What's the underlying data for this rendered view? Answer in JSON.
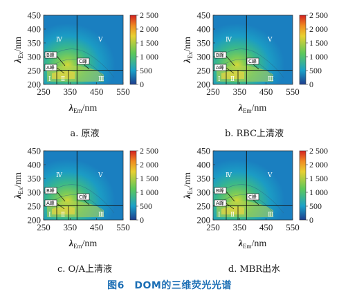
{
  "axis": {
    "x_label_main": "λ",
    "x_label_sub": "Em",
    "x_label_unit": "/nm",
    "y_label_main": "λ",
    "y_label_sub": "Ex",
    "y_label_unit": "/nm",
    "x_ticks": [
      "250",
      "350",
      "450",
      "550"
    ],
    "y_ticks": [
      "450",
      "400",
      "350",
      "300",
      "250",
      "200"
    ],
    "colorbar_ticks": [
      "2 500",
      "2 000",
      "1 500",
      "1 000",
      "500",
      "0"
    ]
  },
  "regions": [
    "Ⅰ",
    "Ⅱ",
    "Ⅲ",
    "Ⅳ",
    "Ⅴ"
  ],
  "peaks": {
    "A": "A峰",
    "B": "B峰",
    "C": "C峰"
  },
  "panels": [
    {
      "caption": "a. 原液"
    },
    {
      "caption": "b. RBC上清液"
    },
    {
      "caption": "c. O/A上清液"
    },
    {
      "caption": "d. MBR出水"
    }
  ],
  "figure_caption": "图6　DOM的三维荧光光谱",
  "chart_data": [
    {
      "type": "heatmap",
      "title": "a. 原液",
      "xlabel": "λEm/nm",
      "ylabel": "λEx/nm",
      "xlim": [
        250,
        550
      ],
      "ylim": [
        200,
        450
      ],
      "colorbar_range": [
        0,
        2500
      ],
      "peaks": [
        "A峰",
        "B峰",
        "C峰"
      ],
      "regions": [
        "Ⅰ",
        "Ⅱ",
        "Ⅲ",
        "Ⅳ",
        "Ⅴ"
      ]
    },
    {
      "type": "heatmap",
      "title": "b. RBC上清液",
      "xlabel": "λEm/nm",
      "ylabel": "λEx/nm",
      "xlim": [
        250,
        550
      ],
      "ylim": [
        200,
        450
      ],
      "colorbar_range": [
        0,
        2500
      ],
      "peaks": [
        "A峰",
        "B峰",
        "C峰"
      ],
      "regions": [
        "Ⅰ",
        "Ⅱ",
        "Ⅲ",
        "Ⅳ",
        "Ⅴ"
      ]
    },
    {
      "type": "heatmap",
      "title": "c. O/A上清液",
      "xlabel": "λEm/nm",
      "ylabel": "λEx/nm",
      "xlim": [
        250,
        550
      ],
      "ylim": [
        200,
        450
      ],
      "colorbar_range": [
        0,
        2500
      ],
      "peaks": [
        "A峰",
        "B峰",
        "C峰"
      ],
      "regions": [
        "Ⅰ",
        "Ⅱ",
        "Ⅲ",
        "Ⅳ",
        "Ⅴ"
      ]
    },
    {
      "type": "heatmap",
      "title": "d. MBR出水",
      "xlabel": "λEm/nm",
      "ylabel": "λEx/nm",
      "xlim": [
        250,
        550
      ],
      "ylim": [
        200,
        450
      ],
      "colorbar_range": [
        0,
        2500
      ],
      "peaks": [
        "A峰",
        "B峰",
        "C峰"
      ],
      "regions": [
        "Ⅰ",
        "Ⅱ",
        "Ⅲ",
        "Ⅳ",
        "Ⅴ"
      ]
    }
  ],
  "colors": {
    "cb_top": "#d42020",
    "cb_mid1": "#f0b020",
    "cb_mid2": "#5cc85a",
    "cb_mid3": "#1aa0c8",
    "cb_bottom": "#1e3d8c",
    "caption": "#1d6fb5"
  }
}
